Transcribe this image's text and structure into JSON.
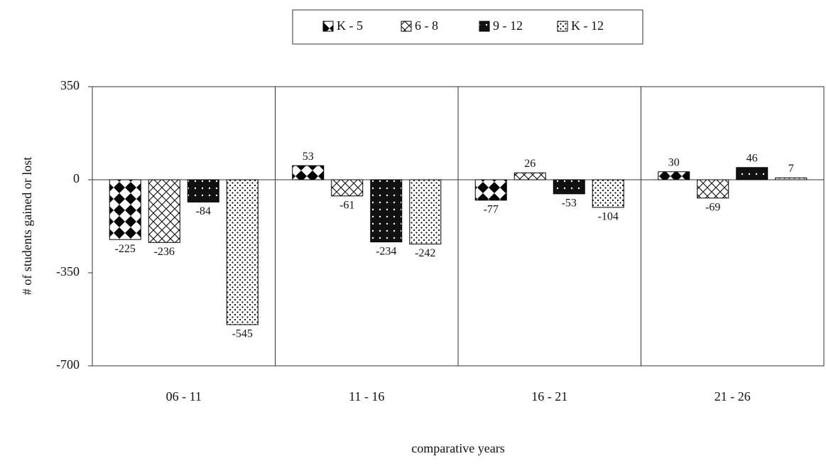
{
  "chart_data": {
    "type": "bar",
    "categories": [
      "06 - 11",
      "11 - 16",
      "16 - 21",
      "21 - 26"
    ],
    "series": [
      {
        "name": "K - 5",
        "color": "#000000",
        "values": [
          -225,
          53,
          -77,
          30
        ]
      },
      {
        "name": "6 - 8",
        "color": "#000000",
        "values": [
          -236,
          -61,
          26,
          -69
        ]
      },
      {
        "name": "9 - 12",
        "color": "#000000",
        "values": [
          -84,
          -234,
          -53,
          46
        ]
      },
      {
        "name": "K - 12",
        "color": "#000000",
        "values": [
          -545,
          -242,
          -104,
          7
        ]
      }
    ],
    "ylim": [
      -700,
      350
    ],
    "yticks": [
      -700,
      -350,
      0,
      350
    ],
    "y_label": "# of students gained or lost",
    "x_label": "comparative years",
    "legend": "top"
  }
}
